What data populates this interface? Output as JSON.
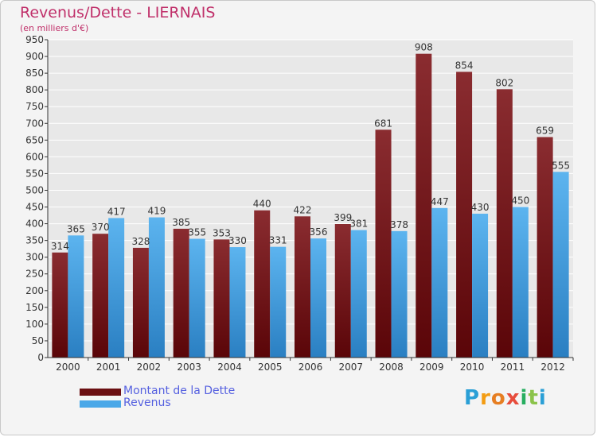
{
  "title": "Revenus/Dette - LIERNAIS",
  "subtitle": "(en milliers d'€)",
  "logo": {
    "letters": [
      "P",
      "r",
      "o",
      "x",
      "i",
      "t",
      "i"
    ],
    "colors": [
      "#2a9fd6",
      "#f39c12",
      "#e67e22",
      "#e74c3c",
      "#27ae60",
      "#8bc34a",
      "#2a9fd6"
    ]
  },
  "colors": {
    "dette": "#7a1f22",
    "revenus": "#4aa8e8",
    "axis": "#333333",
    "grid": "#ffffff"
  },
  "legend": [
    {
      "name": "Montant de la Dette",
      "color": "#6b0f12"
    },
    {
      "name": "Revenus",
      "color": "#4aa8e8"
    }
  ],
  "chart_data": {
    "type": "bar",
    "title": "Revenus/Dette - LIERNAIS",
    "subtitle": "(en milliers d'€)",
    "categories": [
      "2000",
      "2001",
      "2002",
      "2003",
      "2004",
      "2005",
      "2006",
      "2007",
      "2008",
      "2009",
      "2010",
      "2011",
      "2012"
    ],
    "series": [
      {
        "name": "Montant de la Dette",
        "values": [
          314,
          370,
          328,
          385,
          353,
          440,
          422,
          399,
          681,
          908,
          854,
          802,
          659
        ]
      },
      {
        "name": "Revenus",
        "values": [
          365,
          417,
          419,
          355,
          330,
          331,
          356,
          381,
          378,
          447,
          430,
          450,
          555
        ]
      }
    ],
    "ylim": [
      0,
      950
    ],
    "yticks": [
      0,
      50,
      100,
      150,
      200,
      250,
      300,
      350,
      400,
      450,
      500,
      550,
      600,
      650,
      700,
      750,
      800,
      850,
      900,
      950
    ],
    "grid": true,
    "legend_position": "bottom-left"
  }
}
